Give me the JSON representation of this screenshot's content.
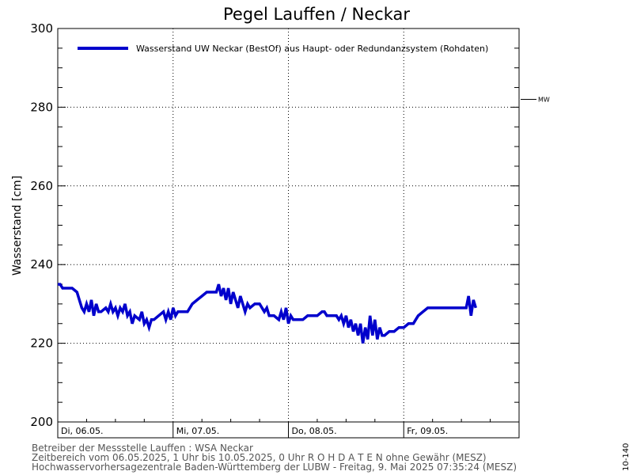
{
  "chart_data": {
    "type": "line",
    "title": "Pegel Lauffen / Neckar",
    "ylabel": "Wasserstand [cm]",
    "ylim": [
      200,
      300
    ],
    "yticks": [
      "200",
      "220",
      "240",
      "260",
      "280",
      "300"
    ],
    "x_labels": [
      "Di, 06.05.",
      "Mi, 07.05.",
      "Do, 08.05.",
      "Fr, 09.05."
    ],
    "x_range_hours": [
      0,
      96
    ],
    "grid": true,
    "legend_position": "top",
    "mw_label": "MW",
    "mw_value": 282,
    "series": [
      {
        "name": "Wasserstand UW Neckar (BestOf)  aus Haupt- oder Redundanzsystem (Rohdaten)",
        "color": "#0000cc",
        "points": [
          [
            0,
            235
          ],
          [
            0.5,
            235
          ],
          [
            1,
            234
          ],
          [
            2,
            234
          ],
          [
            3,
            234
          ],
          [
            4,
            233
          ],
          [
            4.5,
            231
          ],
          [
            5,
            229
          ],
          [
            5.5,
            228
          ],
          [
            6,
            230
          ],
          [
            6.5,
            228
          ],
          [
            7,
            231
          ],
          [
            7.5,
            227
          ],
          [
            8,
            230
          ],
          [
            8.5,
            228
          ],
          [
            9,
            228
          ],
          [
            10,
            229
          ],
          [
            10.5,
            228
          ],
          [
            11,
            230
          ],
          [
            11.5,
            228
          ],
          [
            12,
            229
          ],
          [
            12.5,
            227
          ],
          [
            13,
            229
          ],
          [
            13.5,
            228
          ],
          [
            14,
            230
          ],
          [
            14.5,
            227
          ],
          [
            15,
            228
          ],
          [
            15.5,
            225
          ],
          [
            16,
            227
          ],
          [
            17,
            226
          ],
          [
            17.5,
            228
          ],
          [
            18,
            225
          ],
          [
            18.5,
            226
          ],
          [
            19,
            224
          ],
          [
            19.5,
            226
          ],
          [
            20,
            226
          ],
          [
            21,
            227
          ],
          [
            22,
            228
          ],
          [
            22.5,
            226
          ],
          [
            23,
            228
          ],
          [
            23.5,
            226
          ],
          [
            24,
            229
          ],
          [
            24.5,
            227
          ],
          [
            25,
            228
          ],
          [
            26,
            228
          ],
          [
            27,
            228
          ],
          [
            28,
            230
          ],
          [
            29,
            231
          ],
          [
            30,
            232
          ],
          [
            31,
            233
          ],
          [
            32,
            233
          ],
          [
            33,
            233
          ],
          [
            33.5,
            235
          ],
          [
            34,
            232
          ],
          [
            34.5,
            234
          ],
          [
            35,
            231
          ],
          [
            35.5,
            234
          ],
          [
            36,
            230
          ],
          [
            36.5,
            233
          ],
          [
            37,
            231
          ],
          [
            37.5,
            229
          ],
          [
            38,
            232
          ],
          [
            38.5,
            230
          ],
          [
            39,
            228
          ],
          [
            39.5,
            230
          ],
          [
            40,
            229
          ],
          [
            41,
            230
          ],
          [
            42,
            230
          ],
          [
            43,
            228
          ],
          [
            43.5,
            229
          ],
          [
            44,
            227
          ],
          [
            45,
            227
          ],
          [
            46,
            226
          ],
          [
            46.5,
            228
          ],
          [
            47,
            226
          ],
          [
            47.5,
            229
          ],
          [
            48,
            225
          ],
          [
            48.5,
            227
          ],
          [
            49,
            226
          ],
          [
            50,
            226
          ],
          [
            51,
            226
          ],
          [
            52,
            227
          ],
          [
            53,
            227
          ],
          [
            54,
            227
          ],
          [
            55,
            228
          ],
          [
            55.5,
            228
          ],
          [
            56,
            227
          ],
          [
            57,
            227
          ],
          [
            58,
            227
          ],
          [
            58.5,
            226
          ],
          [
            59,
            227
          ],
          [
            59.5,
            225
          ],
          [
            60,
            227
          ],
          [
            60.5,
            224
          ],
          [
            61,
            226
          ],
          [
            61.5,
            223
          ],
          [
            62,
            225
          ],
          [
            62.5,
            222
          ],
          [
            63,
            225
          ],
          [
            63.5,
            220
          ],
          [
            64,
            224
          ],
          [
            64.5,
            221
          ],
          [
            65,
            227
          ],
          [
            65.5,
            222
          ],
          [
            66,
            226
          ],
          [
            66.5,
            221
          ],
          [
            67,
            224
          ],
          [
            67.5,
            222
          ],
          [
            68,
            222
          ],
          [
            69,
            223
          ],
          [
            70,
            223
          ],
          [
            71,
            224
          ],
          [
            72,
            224
          ],
          [
            73,
            225
          ],
          [
            74,
            225
          ],
          [
            74.5,
            226
          ],
          [
            75,
            227
          ],
          [
            76,
            228
          ],
          [
            77,
            229
          ],
          [
            78,
            229
          ],
          [
            80,
            229
          ],
          [
            82,
            229
          ],
          [
            84,
            229
          ],
          [
            85,
            229
          ],
          [
            85.5,
            232
          ],
          [
            86,
            227
          ],
          [
            86.5,
            231
          ],
          [
            87,
            229
          ]
        ]
      }
    ]
  },
  "footer": {
    "line1": "Betreiber der Messstelle Lauffen : WSA Neckar",
    "line2": "Zeitbereich vom 06.05.2025, 1 Uhr bis 10.05.2025, 0 Uhr   R O H D A T E N ohne Gewähr (MESZ)",
    "line3": "Hochwasservorhersagezentrale Baden-Württemberg der LUBW -  Freitag, 9. Mai 2025 07:35:24 (MESZ)"
  },
  "side_label": "10-140"
}
